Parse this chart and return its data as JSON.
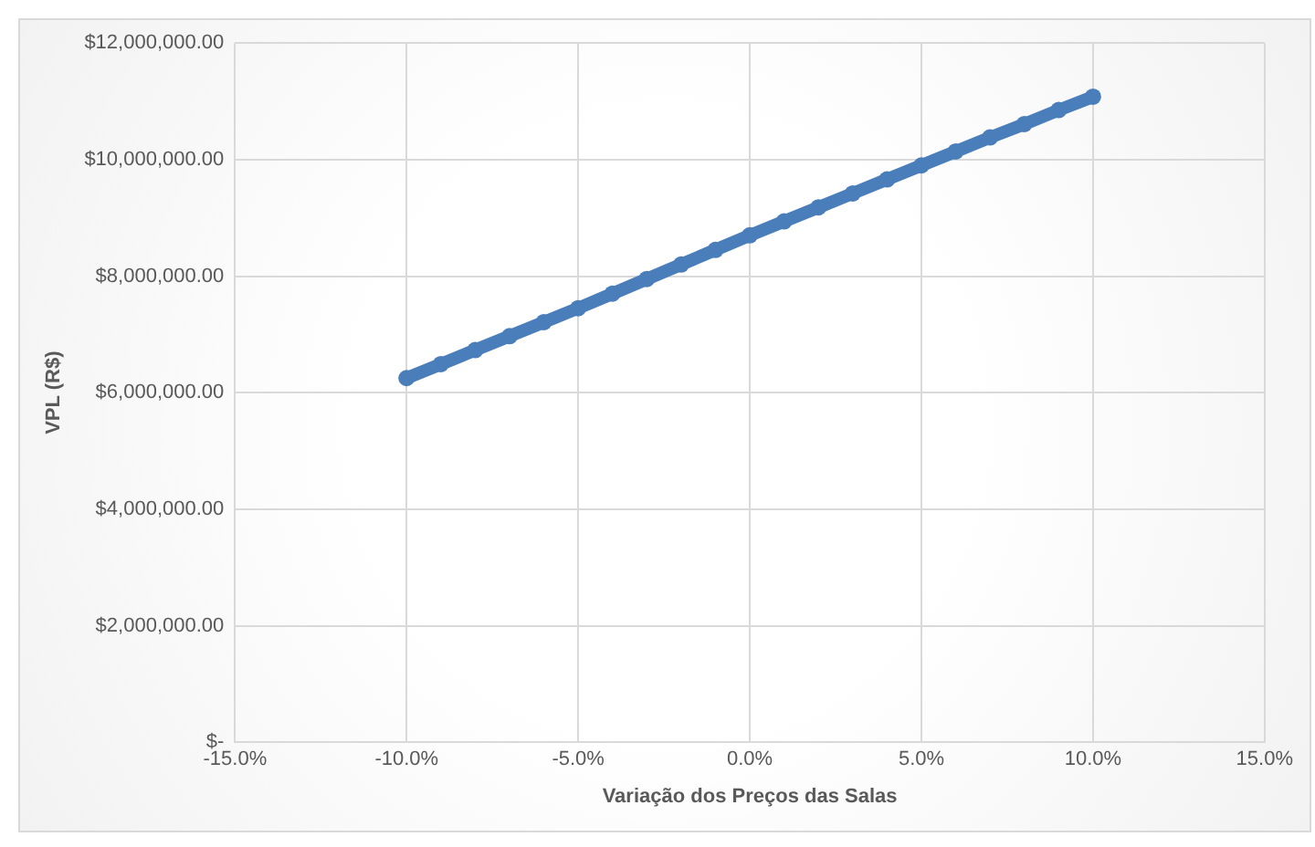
{
  "chart_data": {
    "type": "line",
    "xlabel": "Variação dos Preços das Salas",
    "ylabel": "VPL (R$)",
    "x": [
      -10,
      -9,
      -8,
      -7,
      -6,
      -5,
      -4,
      -3,
      -2,
      -1,
      0,
      1,
      2,
      3,
      4,
      5,
      6,
      7,
      8,
      9,
      10
    ],
    "series": [
      {
        "color": "#4a7ebb",
        "values": [
          6250000,
          6490000,
          6730000,
          6970000,
          7210000,
          7450000,
          7700000,
          7950000,
          8200000,
          8450000,
          8700000,
          8940000,
          9180000,
          9420000,
          9660000,
          9900000,
          10140000,
          10380000,
          10610000,
          10850000,
          11080000
        ]
      }
    ],
    "xlim": [
      -15,
      15
    ],
    "xticks": [
      {
        "value": -15,
        "label": "-15.0%"
      },
      {
        "value": -10,
        "label": "-10.0%"
      },
      {
        "value": -5,
        "label": "-5.0%"
      },
      {
        "value": 0,
        "label": "0.0%"
      },
      {
        "value": 5,
        "label": "5.0%"
      },
      {
        "value": 10,
        "label": "10.0%"
      },
      {
        "value": 15,
        "label": "15.0%"
      }
    ],
    "ylim": [
      0,
      12000000
    ],
    "yticks": [
      {
        "value": 0,
        "label": "$-"
      },
      {
        "value": 2000000,
        "label": "$2,000,000.00"
      },
      {
        "value": 4000000,
        "label": "$4,000,000.00"
      },
      {
        "value": 6000000,
        "label": "$6,000,000.00"
      },
      {
        "value": 8000000,
        "label": "$8,000,000.00"
      },
      {
        "value": 10000000,
        "label": "$10,000,000.00"
      },
      {
        "value": 12000000,
        "label": "$12,000,000.00"
      }
    ],
    "grid": true,
    "legend": false,
    "marker": "circle"
  }
}
